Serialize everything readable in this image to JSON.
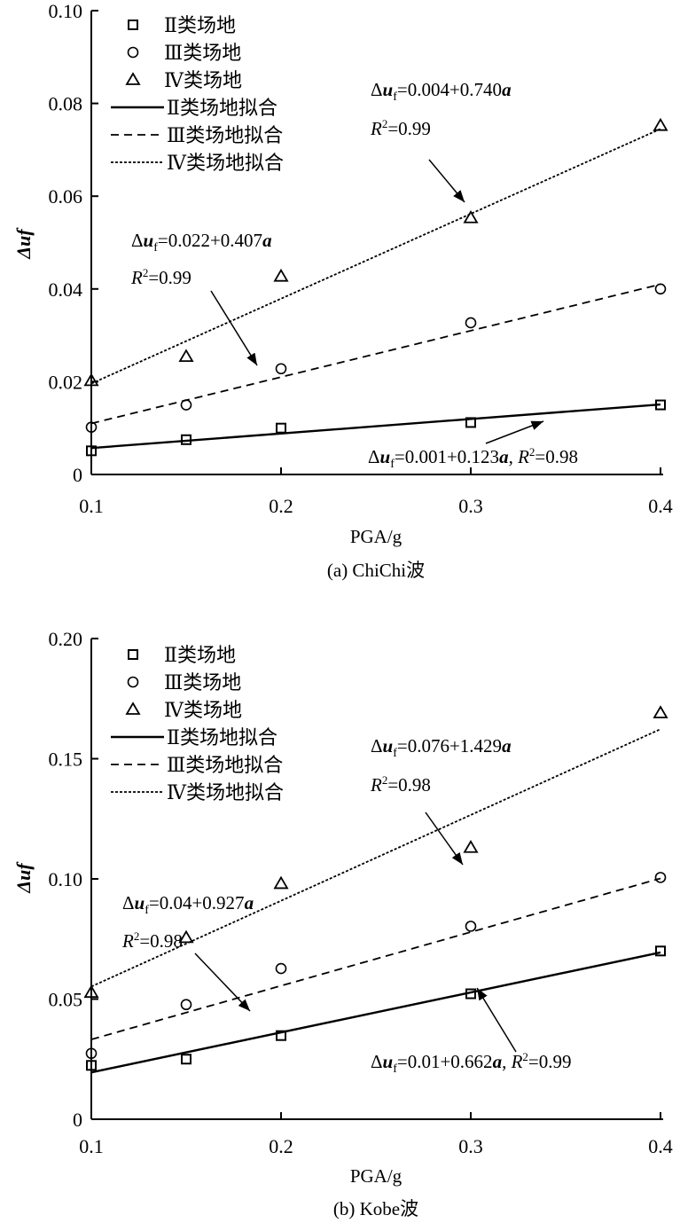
{
  "chart_data": [
    {
      "type": "scatter",
      "title": "(a) ChiChi波",
      "xlabel": "PGA/g",
      "ylabel": "Δuf",
      "xlim": [
        0.1,
        0.4
      ],
      "ylim": [
        0,
        0.1
      ],
      "xticks": [
        "0.1",
        "0.2",
        "0.3",
        "0.4"
      ],
      "yticks": [
        "0",
        "0.02",
        "0.04",
        "0.06",
        "0.08",
        "0.10"
      ],
      "x": [
        0.1,
        0.15,
        0.2,
        0.3,
        0.4
      ],
      "series": [
        {
          "name": "Ⅱ类场地",
          "marker": "square",
          "values": [
            0.0051,
            0.0075,
            0.01,
            0.0112,
            0.015
          ]
        },
        {
          "name": "Ⅲ类场地",
          "marker": "circle",
          "values": [
            0.0102,
            0.015,
            0.0228,
            0.0327,
            0.04
          ]
        },
        {
          "name": "Ⅳ类场地",
          "marker": "triangle",
          "values": [
            0.0202,
            0.0254,
            0.0427,
            0.0553,
            0.0752
          ]
        }
      ],
      "fits": [
        {
          "name": "Ⅱ类场地拟合",
          "style": "solid",
          "x": [
            0.1,
            0.4
          ],
          "y": [
            0.0057,
            0.0151
          ]
        },
        {
          "name": "Ⅲ类场地拟合",
          "style": "dashed",
          "x": [
            0.1,
            0.4
          ],
          "y": [
            0.011,
            0.041
          ]
        },
        {
          "name": "Ⅳ类场地拟合",
          "style": "dotted",
          "x": [
            0.1,
            0.4
          ],
          "y": [
            0.0196,
            0.0745
          ]
        }
      ],
      "annotations": [
        {
          "eq_prefix": "Δ",
          "eq_var": "u",
          "eq_sub": "f",
          "eq_rest": "=0.004+0.740",
          "eq_a": "a",
          "r2": "=0.99"
        },
        {
          "eq_prefix": "Δ",
          "eq_var": "u",
          "eq_sub": "f",
          "eq_rest": "=0.022+0.407",
          "eq_a": "a",
          "r2": "=0.99"
        },
        {
          "eq_prefix": "Δ",
          "eq_var": "u",
          "eq_sub": "f",
          "eq_rest": "=0.001+0.123",
          "eq_a": "a",
          "r2": "=0.98"
        }
      ]
    },
    {
      "type": "scatter",
      "title": "(b) Kobe波",
      "xlabel": "PGA/g",
      "ylabel": "Δuf",
      "xlim": [
        0.1,
        0.4
      ],
      "ylim": [
        0,
        0.2
      ],
      "xticks": [
        "0.1",
        "0.2",
        "0.3",
        "0.4"
      ],
      "yticks": [
        "0",
        "0.05",
        "0.10",
        "0.15",
        "0.20"
      ],
      "x": [
        0.1,
        0.15,
        0.2,
        0.3,
        0.4
      ],
      "series": [
        {
          "name": "Ⅱ类场地",
          "marker": "square",
          "values": [
            0.0224,
            0.025,
            0.0348,
            0.0522,
            0.07
          ]
        },
        {
          "name": "Ⅲ类场地",
          "marker": "circle",
          "values": [
            0.0274,
            0.0477,
            0.0627,
            0.0803,
            0.1006
          ]
        },
        {
          "name": "Ⅳ类场地",
          "marker": "triangle",
          "values": [
            0.0527,
            0.0755,
            0.098,
            0.113,
            0.169
          ]
        }
      ],
      "fits": [
        {
          "name": "Ⅱ类场地拟合",
          "style": "solid",
          "x": [
            0.1,
            0.4
          ],
          "y": [
            0.0195,
            0.0694
          ]
        },
        {
          "name": "Ⅲ类场地拟合",
          "style": "dashed",
          "x": [
            0.1,
            0.4
          ],
          "y": [
            0.0332,
            0.1002
          ]
        },
        {
          "name": "Ⅳ类场地拟合",
          "style": "dotted",
          "x": [
            0.1,
            0.4
          ],
          "y": [
            0.0552,
            0.1623
          ]
        }
      ],
      "annotations": [
        {
          "eq_prefix": "Δ",
          "eq_var": "u",
          "eq_sub": "f",
          "eq_rest": "=0.076+1.429",
          "eq_a": "a",
          "r2": "=0.98"
        },
        {
          "eq_prefix": "Δ",
          "eq_var": "u",
          "eq_sub": "f",
          "eq_rest": "=0.04+0.927",
          "eq_a": "a",
          "r2": "=0.98"
        },
        {
          "eq_prefix": "Δ",
          "eq_var": "u",
          "eq_sub": "f",
          "eq_rest": "=0.01+0.662",
          "eq_a": "a",
          "r2": "=0.99"
        }
      ]
    }
  ]
}
